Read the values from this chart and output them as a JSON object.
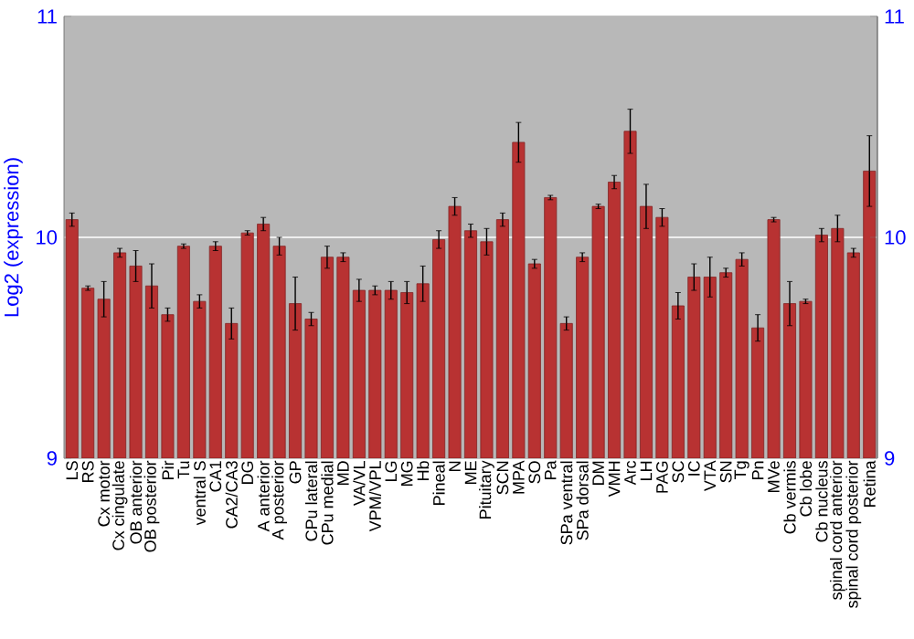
{
  "chart_data": {
    "type": "bar",
    "ylabel": "Log2 (expression)",
    "categories": [
      "LS",
      "RS",
      "Cx motor",
      "Cx cingulate",
      "OB anterior",
      "OB posterior",
      "Pir",
      "Tu",
      "ventral S",
      "CA1",
      "CA2/CA3",
      "DG",
      "A anterior",
      "A posterior",
      "GP",
      "CPu lateral",
      "CPu medial",
      "MD",
      "VA/VL",
      "VPM/VPL",
      "LG",
      "MG",
      "Hb",
      "Pineal",
      "N",
      "ME",
      "Pituitary",
      "SCN",
      "MPA",
      "SO",
      "Pa",
      "SPa ventral",
      "SPa dorsal",
      "DM",
      "VMH",
      "Arc",
      "LH",
      "PAG",
      "SC",
      "IC",
      "VTA",
      "SN",
      "Tg",
      "Pn",
      "MVe",
      "Cb vermis",
      "Cb lobe",
      "Cb nucleus",
      "spinal cord anterior",
      "spinal cord posterior",
      "Retina"
    ],
    "values": [
      10.08,
      9.77,
      9.72,
      9.93,
      9.87,
      9.78,
      9.65,
      9.96,
      9.71,
      9.96,
      9.61,
      10.02,
      10.06,
      9.96,
      9.7,
      9.63,
      9.91,
      9.91,
      9.76,
      9.76,
      9.76,
      9.75,
      9.79,
      9.99,
      10.14,
      10.03,
      9.98,
      10.08,
      10.43,
      9.88,
      10.18,
      9.61,
      9.91,
      10.14,
      10.25,
      10.48,
      10.14,
      10.09,
      9.69,
      9.82,
      9.82,
      9.84,
      9.9,
      9.59,
      10.08,
      9.7,
      9.71,
      10.01,
      10.04,
      9.93,
      10.3
    ],
    "errors": [
      0.03,
      0.01,
      0.08,
      0.02,
      0.07,
      0.1,
      0.03,
      0.01,
      0.03,
      0.02,
      0.07,
      0.01,
      0.03,
      0.04,
      0.12,
      0.03,
      0.05,
      0.02,
      0.05,
      0.02,
      0.04,
      0.05,
      0.08,
      0.04,
      0.04,
      0.03,
      0.06,
      0.03,
      0.09,
      0.02,
      0.01,
      0.03,
      0.02,
      0.01,
      0.03,
      0.1,
      0.1,
      0.04,
      0.06,
      0.06,
      0.09,
      0.02,
      0.03,
      0.06,
      0.01,
      0.1,
      0.01,
      0.03,
      0.06,
      0.02,
      0.16
    ],
    "color": "#b83232",
    "ylim": [
      9,
      11
    ],
    "yticks": [
      9,
      10,
      11
    ],
    "y2lim": [
      9,
      11
    ],
    "y2ticks": [
      9,
      10,
      11
    ],
    "grid": "y"
  }
}
